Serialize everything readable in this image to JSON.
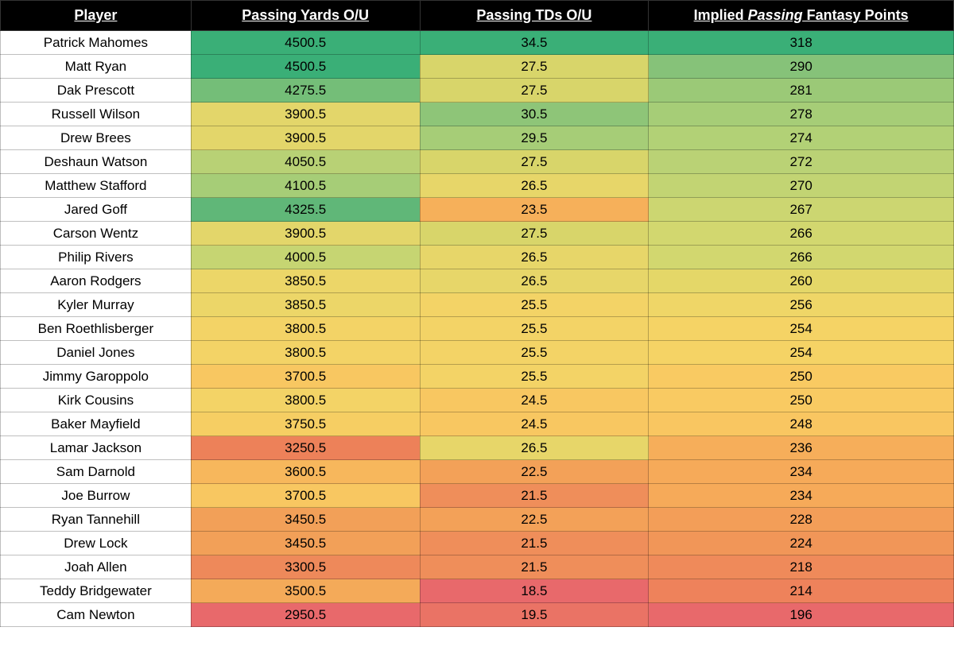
{
  "table": {
    "type": "heatmap-table",
    "headers": {
      "player": "Player",
      "yards": "Passing Yards O/U",
      "tds": "Passing TDs O/U",
      "points_prefix": "Implied ",
      "points_italic": "Passing",
      "points_suffix": " Fantasy Points"
    },
    "columns": [
      "player",
      "yards",
      "tds",
      "points"
    ],
    "col_widths_pct": [
      20,
      24,
      24,
      32
    ],
    "header_bg": "#000000",
    "header_fg": "#ffffff",
    "header_fontsize": 18,
    "cell_fontsize": 17,
    "border_color": "rgba(0,0,0,0.25)",
    "player_bg": "#ffffff",
    "rows": [
      {
        "player": "Patrick Mahomes",
        "yards": "4500.5",
        "yards_bg": "#3aaf77",
        "tds": "34.5",
        "tds_bg": "#3aaf77",
        "points": "318",
        "points_bg": "#3aaf77"
      },
      {
        "player": "Matt Ryan",
        "yards": "4500.5",
        "yards_bg": "#3aaf77",
        "tds": "27.5",
        "tds_bg": "#d8d56a",
        "points": "290",
        "points_bg": "#86c279"
      },
      {
        "player": "Dak Prescott",
        "yards": "4275.5",
        "yards_bg": "#74be78",
        "tds": "27.5",
        "tds_bg": "#d8d56a",
        "points": "281",
        "points_bg": "#9bc977"
      },
      {
        "player": "Russell Wilson",
        "yards": "3900.5",
        "yards_bg": "#e3d66a",
        "tds": "30.5",
        "tds_bg": "#8ec578",
        "points": "278",
        "points_bg": "#a6cd77"
      },
      {
        "player": "Drew Brees",
        "yards": "3900.5",
        "yards_bg": "#e3d66a",
        "tds": "29.5",
        "tds_bg": "#a6cd77",
        "points": "274",
        "points_bg": "#b2d176"
      },
      {
        "player": "Deshaun Watson",
        "yards": "4050.5",
        "yards_bg": "#b8d175",
        "tds": "27.5",
        "tds_bg": "#d8d56a",
        "points": "272",
        "points_bg": "#bad275"
      },
      {
        "player": "Matthew Stafford",
        "yards": "4100.5",
        "yards_bg": "#a6cd77",
        "tds": "26.5",
        "tds_bg": "#e7d669",
        "points": "270",
        "points_bg": "#c2d473"
      },
      {
        "player": "Jared Goff",
        "yards": "4325.5",
        "yards_bg": "#60b778",
        "tds": "23.5",
        "tds_bg": "#f6b05a",
        "points": "267",
        "points_bg": "#ccd671"
      },
      {
        "player": "Carson Wentz",
        "yards": "3900.5",
        "yards_bg": "#e3d66a",
        "tds": "27.5",
        "tds_bg": "#d8d56a",
        "points": "266",
        "points_bg": "#d2d76f"
      },
      {
        "player": "Philip Rivers",
        "yards": "4000.5",
        "yards_bg": "#c6d572",
        "tds": "26.5",
        "tds_bg": "#e7d669",
        "points": "266",
        "points_bg": "#d2d76f"
      },
      {
        "player": "Aaron Rodgers",
        "yards": "3850.5",
        "yards_bg": "#ecd668",
        "tds": "26.5",
        "tds_bg": "#e7d669",
        "points": "260",
        "points_bg": "#e4d768"
      },
      {
        "player": "Kyler Murray",
        "yards": "3850.5",
        "yards_bg": "#ecd668",
        "tds": "25.5",
        "tds_bg": "#f3d366",
        "points": "256",
        "points_bg": "#efd667"
      },
      {
        "player": "Ben Roethlisberger",
        "yards": "3800.5",
        "yards_bg": "#f3d366",
        "tds": "25.5",
        "tds_bg": "#f3d366",
        "points": "254",
        "points_bg": "#f5d365"
      },
      {
        "player": "Daniel Jones",
        "yards": "3800.5",
        "yards_bg": "#f3d366",
        "tds": "25.5",
        "tds_bg": "#f3d366",
        "points": "254",
        "points_bg": "#f5d365"
      },
      {
        "player": "Jimmy Garoppolo",
        "yards": "3700.5",
        "yards_bg": "#f8c761",
        "tds": "25.5",
        "tds_bg": "#f3d366",
        "points": "250",
        "points_bg": "#f9ca62"
      },
      {
        "player": "Kirk Cousins",
        "yards": "3800.5",
        "yards_bg": "#f3d366",
        "tds": "24.5",
        "tds_bg": "#f8c761",
        "points": "250",
        "points_bg": "#f9ca62"
      },
      {
        "player": "Baker Mayfield",
        "yards": "3750.5",
        "yards_bg": "#f6ce63",
        "tds": "24.5",
        "tds_bg": "#f8c761",
        "points": "248",
        "points_bg": "#f9c661"
      },
      {
        "player": "Lamar Jackson",
        "yards": "3250.5",
        "yards_bg": "#ed8159",
        "tds": "26.5",
        "tds_bg": "#e7d669",
        "points": "236",
        "points_bg": "#f6ae5a"
      },
      {
        "player": "Sam Darnold",
        "yards": "3600.5",
        "yards_bg": "#f7b75c",
        "tds": "22.5",
        "tds_bg": "#f3a158",
        "points": "234",
        "points_bg": "#f6aa59"
      },
      {
        "player": "Joe Burrow",
        "yards": "3700.5",
        "yards_bg": "#f8c761",
        "tds": "21.5",
        "tds_bg": "#ef8e5a",
        "points": "234",
        "points_bg": "#f6aa59"
      },
      {
        "player": "Ryan Tannehill",
        "yards": "3450.5",
        "yards_bg": "#f2a058",
        "tds": "22.5",
        "tds_bg": "#f3a158",
        "points": "228",
        "points_bg": "#f39e58"
      },
      {
        "player": "Drew Lock",
        "yards": "3450.5",
        "yards_bg": "#f2a058",
        "tds": "21.5",
        "tds_bg": "#ef8e5a",
        "points": "224",
        "points_bg": "#f19658"
      },
      {
        "player": "Joah Allen",
        "yards": "3300.5",
        "yards_bg": "#ee895a",
        "tds": "21.5",
        "tds_bg": "#ef8e5a",
        "points": "218",
        "points_bg": "#ef8a5a"
      },
      {
        "player": "Teddy Bridgewater",
        "yards": "3500.5",
        "yards_bg": "#f4aa59",
        "tds": "18.5",
        "tds_bg": "#e8696b",
        "points": "214",
        "points_bg": "#ee825b"
      },
      {
        "player": "Cam Newton",
        "yards": "2950.5",
        "yards_bg": "#e8696b",
        "tds": "19.5",
        "tds_bg": "#ea7365",
        "points": "196",
        "points_bg": "#e8696b"
      }
    ]
  }
}
